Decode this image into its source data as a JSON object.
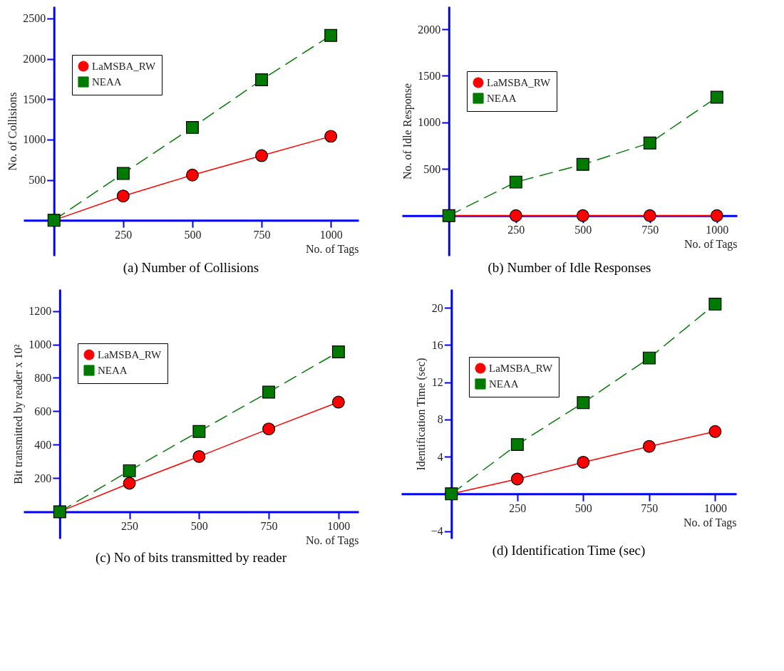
{
  "chart_data": [
    {
      "type": "line",
      "title": "(a) Number of Collisions",
      "xlabel": "No. of Tags",
      "ylabel": "No. of Collisions",
      "x": [
        0,
        250,
        500,
        750,
        1000
      ],
      "xlim": [
        -110,
        1100
      ],
      "ylim": [
        -440,
        2650
      ],
      "xticks": [
        250,
        500,
        750,
        1000
      ],
      "yticks": [
        500,
        1000,
        1500,
        2000,
        2500
      ],
      "grid": false,
      "legend": "top left",
      "series": [
        {
          "name": "LaMSBA_RW",
          "color": "#ff0000",
          "marker": "circle",
          "line_style": "solid",
          "values": [
            0,
            300,
            560,
            800,
            1040
          ]
        },
        {
          "name": "NEAA",
          "color": "#007a00",
          "marker": "square",
          "line_style": "dashed",
          "values": [
            0,
            580,
            1150,
            1740,
            2290
          ]
        }
      ]
    },
    {
      "type": "line",
      "title": "(b) Number of Idle Responses",
      "xlabel": "No. of Tags",
      "ylabel": "No. of Idle Response",
      "x": [
        0,
        250,
        500,
        750,
        1000
      ],
      "xlim": [
        -175,
        1075
      ],
      "ylim": [
        -430,
        2245
      ],
      "xticks": [
        250,
        500,
        750,
        1000
      ],
      "yticks": [
        500,
        1000,
        1500,
        2000
      ],
      "grid": false,
      "legend": "top left",
      "series": [
        {
          "name": "LaMSBA_RW",
          "color": "#ff0000",
          "marker": "circle",
          "line_style": "solid",
          "values": [
            0,
            0,
            0,
            0,
            0
          ]
        },
        {
          "name": "NEAA",
          "color": "#007a00",
          "marker": "square",
          "line_style": "dashed",
          "values": [
            0,
            360,
            550,
            780,
            1270
          ]
        }
      ]
    },
    {
      "type": "line",
      "title": "(c) No of bits transmitted by reader",
      "xlabel": "No. of Tags",
      "ylabel": "Bit transmitted by reader x 10²",
      "x": [
        0,
        250,
        500,
        750,
        1000
      ],
      "xlim": [
        -130,
        1072
      ],
      "ylim": [
        -160,
        1330
      ],
      "xticks": [
        250,
        500,
        750,
        1000
      ],
      "yticks": [
        200,
        400,
        600,
        800,
        1000,
        1200
      ],
      "grid": false,
      "legend": "top left",
      "series": [
        {
          "name": "LaMSBA_RW",
          "color": "#ff0000",
          "marker": "circle",
          "line_style": "solid",
          "values": [
            0,
            170,
            330,
            495,
            655
          ]
        },
        {
          "name": "NEAA",
          "color": "#007a00",
          "marker": "square",
          "line_style": "dashed",
          "values": [
            0,
            245,
            480,
            715,
            955
          ]
        }
      ]
    },
    {
      "type": "line",
      "title": "(d) Identification Time (sec)",
      "xlabel": "No. of Tags",
      "ylabel": "Identification Time (sec)",
      "x": [
        0,
        250,
        500,
        750,
        1000
      ],
      "xlim": [
        -190,
        1080
      ],
      "ylim": [
        -4.8,
        22
      ],
      "xticks": [
        250,
        500,
        750,
        1000
      ],
      "yticks": [
        -4,
        4,
        8,
        12,
        16,
        20
      ],
      "grid": false,
      "legend": "top left",
      "series": [
        {
          "name": "LaMSBA_RW",
          "color": "#ff0000",
          "marker": "circle",
          "line_style": "solid",
          "values": [
            0,
            1.6,
            3.4,
            5.1,
            6.7
          ]
        },
        {
          "name": "NEAA",
          "color": "#007a00",
          "marker": "square",
          "line_style": "dashed",
          "values": [
            0,
            5.3,
            9.8,
            14.6,
            20.4
          ]
        }
      ]
    }
  ]
}
